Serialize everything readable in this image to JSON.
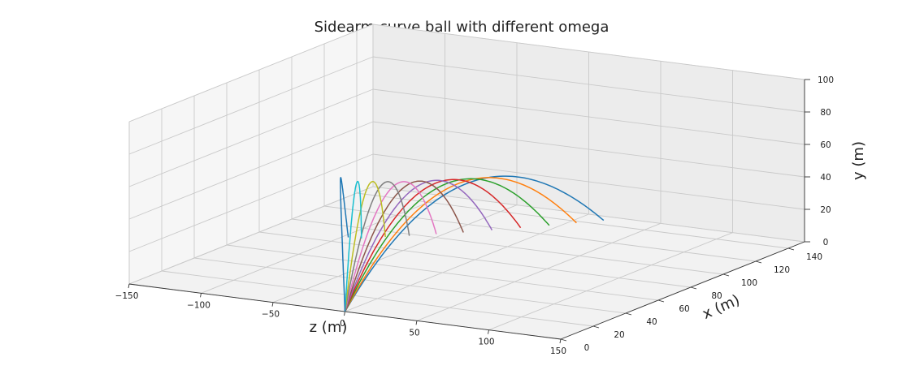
{
  "chart_data": {
    "type": "line",
    "projection": "3d",
    "title": "Sidearm curve ball with different omega",
    "xlabel": "z (m)",
    "ylabel": "x (m)",
    "zlabel": "y (m)",
    "xlim": [
      -150,
      150
    ],
    "ylim": [
      0,
      150
    ],
    "zlim": [
      0,
      100
    ],
    "xticks": [
      "−150",
      "−100",
      "−50",
      "0",
      "50",
      "100",
      "150"
    ],
    "yticks": [
      "0",
      "20",
      "40",
      "60",
      "80",
      "100",
      "120",
      "140"
    ],
    "zticks": [
      "0",
      "20",
      "40",
      "60",
      "80",
      "100"
    ],
    "grid": true,
    "colors": [
      "#1f77b4",
      "#ff7f0e",
      "#2ca02c",
      "#d62728",
      "#9467bd",
      "#8c564b",
      "#e377c2",
      "#7f7f7f",
      "#bcbd22",
      "#17becf",
      "#1f77b4"
    ],
    "series": [
      {
        "end_z": 16,
        "end_x": 145,
        "peak_z": 10,
        "peak_x": 74,
        "peak_y": 50
      },
      {
        "end_z": 5,
        "end_x": 138,
        "peak_z": 5,
        "peak_x": 71,
        "peak_y": 50
      },
      {
        "end_z": -6,
        "end_x": 131,
        "peak_z": -2,
        "peak_x": 68,
        "peak_y": 50
      },
      {
        "end_z": -18,
        "end_x": 124,
        "peak_z": -9,
        "peak_x": 66,
        "peak_y": 50
      },
      {
        "end_z": -30,
        "end_x": 117,
        "peak_z": -16,
        "peak_x": 64,
        "peak_y": 50
      },
      {
        "end_z": -42,
        "end_x": 110,
        "peak_z": -23,
        "peak_x": 62,
        "peak_y": 50
      },
      {
        "end_z": -54,
        "end_x": 104,
        "peak_z": -30,
        "peak_x": 60,
        "peak_y": 50
      },
      {
        "end_z": -66,
        "end_x": 98,
        "peak_z": -38,
        "peak_x": 59,
        "peak_y": 50
      },
      {
        "end_z": -77,
        "end_x": 93,
        "peak_z": -46,
        "peak_x": 58,
        "peak_y": 50
      },
      {
        "end_z": -88,
        "end_x": 88,
        "peak_z": -54,
        "peak_x": 57,
        "peak_y": 50
      },
      {
        "end_z": -96,
        "end_x": 87,
        "peak_z": -70,
        "peak_x": 61,
        "peak_y": 50
      }
    ]
  }
}
